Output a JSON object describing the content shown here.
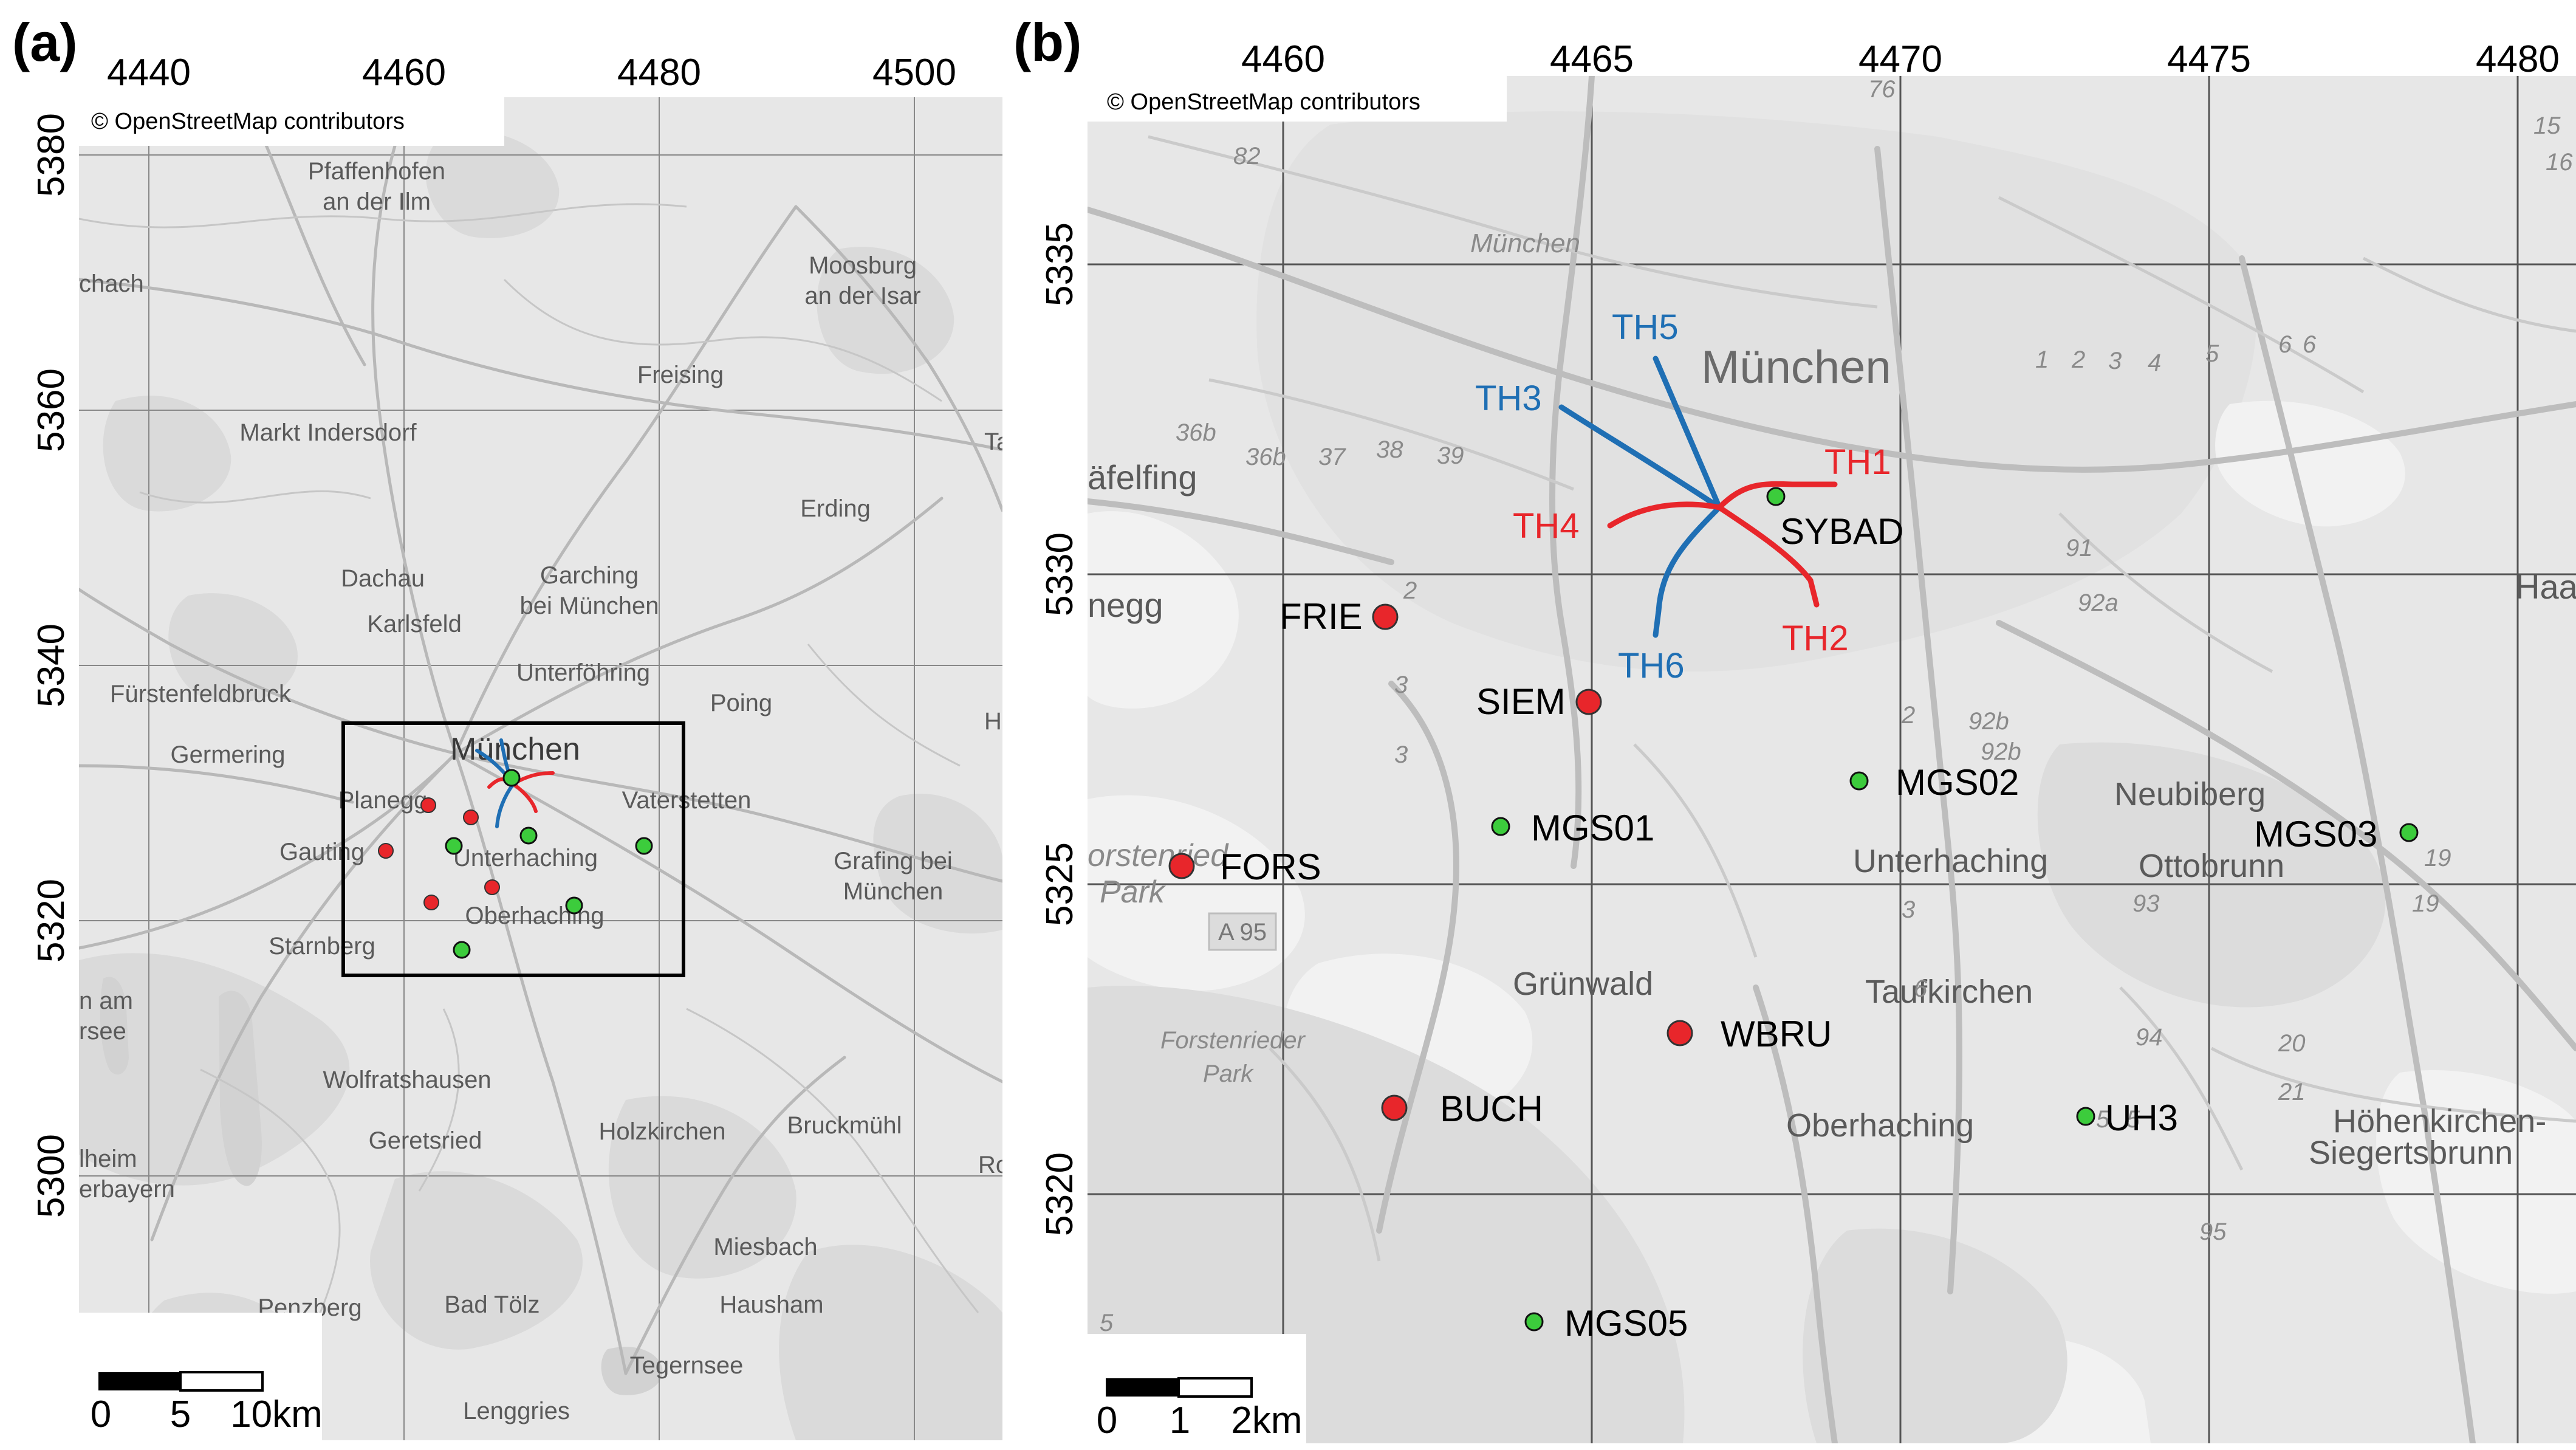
{
  "figure": {
    "panel_a": {
      "label": "(a)",
      "copyright": "© OpenStreetMap contributors",
      "x_ticks": [
        "4440",
        "4460",
        "4480",
        "4500"
      ],
      "y_ticks": [
        "5380",
        "5360",
        "5340",
        "5320",
        "5300"
      ],
      "scale_bar": [
        "0",
        "5",
        "10km"
      ],
      "places": [
        "Pfaffenhofen",
        "an der Ilm",
        "Moosburg",
        "an der Isar",
        "Freising",
        "Markt Indersdorf",
        "Erding",
        "Dachau",
        "Garching",
        "bei München",
        "Karlsfeld",
        "Unterföhring",
        "Fürstenfeldbruck",
        "Poing",
        "München",
        "Germering",
        "Planegg",
        "Vaterstetten",
        "Gauting",
        "Unterhaching",
        "Grafing bei",
        "München",
        "Oberhaching",
        "Starnberg",
        "Wolfratshausen",
        "Geretsried",
        "Holzkirchen",
        "Bruckmühl",
        "Miesbach",
        "Bad Tölz",
        "Hausham",
        "Penzberg",
        "Tegernsee",
        "Lenggries",
        "Ha",
        "Ta",
        "Ro",
        "chach",
        "n am",
        "rsee",
        "lheim",
        "erbayern"
      ]
    },
    "panel_b": {
      "label": "(b)",
      "copyright": "© OpenStreetMap contributors",
      "x_ticks": [
        "4460",
        "4465",
        "4470",
        "4475",
        "4480"
      ],
      "y_ticks": [
        "5335",
        "5330",
        "5325",
        "5320"
      ],
      "scale_bar": [
        "0",
        "1",
        "2km"
      ],
      "places": [
        "München",
        "München",
        "äfelfing",
        "negg",
        "Haar",
        "Neubiberg",
        "Ottobrunn",
        "Unterhaching",
        "Grünwald",
        "Taufkirchen",
        "Oberhaching",
        "Höhenkirchen-",
        "Siegertsbrunn",
        "Forstenrieder",
        "Park",
        "orstenried",
        "Park",
        "A 95"
      ],
      "wells_red": [
        "TH1",
        "TH2",
        "TH4"
      ],
      "wells_blue": [
        "TH3",
        "TH5",
        "TH6"
      ],
      "stations_red": [
        "FRIE",
        "SIEM",
        "FORS",
        "WBRU",
        "BUCH"
      ],
      "stations_green": [
        "SYBAD",
        "MGS01",
        "MGS02",
        "MGS03",
        "UH3",
        "MGS05"
      ],
      "road_numbers": [
        "82",
        "76",
        "36b",
        "36b",
        "37",
        "38",
        "39",
        "1",
        "2",
        "3",
        "4",
        "5",
        "6",
        "6",
        "91",
        "92a",
        "92b",
        "92b",
        "2",
        "3",
        "3",
        "2",
        "3",
        "93",
        "94",
        "20",
        "21",
        "19",
        "19",
        "95",
        "15",
        "16",
        "5",
        "5",
        "5",
        "6"
      ]
    },
    "colors": {
      "red_marker": "#e8262b",
      "green_marker": "#3ccc3c",
      "blue_line": "#1f6fb4",
      "red_line": "#e8262b",
      "map_bg": "#e7e7e7"
    }
  }
}
